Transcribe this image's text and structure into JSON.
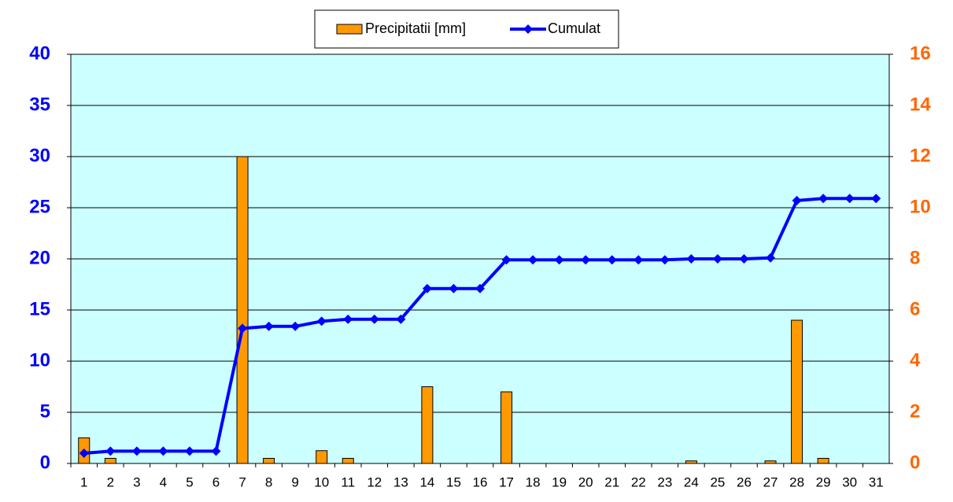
{
  "chart_data": {
    "type": "combo",
    "categories": [
      "1",
      "2",
      "3",
      "4",
      "5",
      "6",
      "7",
      "8",
      "9",
      "10",
      "11",
      "12",
      "13",
      "14",
      "15",
      "16",
      "17",
      "18",
      "19",
      "20",
      "21",
      "22",
      "23",
      "24",
      "25",
      "26",
      "27",
      "28",
      "29",
      "30",
      "31"
    ],
    "series": [
      {
        "name": "Precipitatii [mm]",
        "type": "bar",
        "axis": "y2",
        "color": "#ff9900",
        "values": [
          1.0,
          0.2,
          0,
          0,
          0,
          0,
          12.0,
          0.2,
          0,
          0.5,
          0.2,
          0,
          0,
          3.0,
          0,
          0,
          2.8,
          0,
          0,
          0,
          0,
          0,
          0,
          0.1,
          0,
          0,
          0.1,
          5.6,
          0.2,
          0,
          0
        ]
      },
      {
        "name": "Cumulat",
        "type": "line",
        "axis": "y",
        "color": "#0000ff",
        "values": [
          1.0,
          1.2,
          1.2,
          1.2,
          1.2,
          1.2,
          13.2,
          13.4,
          13.4,
          13.9,
          14.1,
          14.1,
          14.1,
          17.1,
          17.1,
          17.1,
          19.9,
          19.9,
          19.9,
          19.9,
          19.9,
          19.9,
          19.9,
          20.0,
          20.0,
          20.0,
          20.1,
          25.7,
          25.9,
          25.9,
          25.9
        ]
      }
    ],
    "ylim": [
      0,
      40
    ],
    "yticks": [
      0,
      5,
      10,
      15,
      20,
      25,
      30,
      35,
      40
    ],
    "ycolor": "#0000ff",
    "y2lim": [
      0,
      16
    ],
    "y2ticks": [
      0,
      2,
      4,
      6,
      8,
      10,
      12,
      14,
      16
    ],
    "y2color": "#ff6600",
    "background": "#ccffff",
    "grid": true,
    "legend": "top"
  }
}
